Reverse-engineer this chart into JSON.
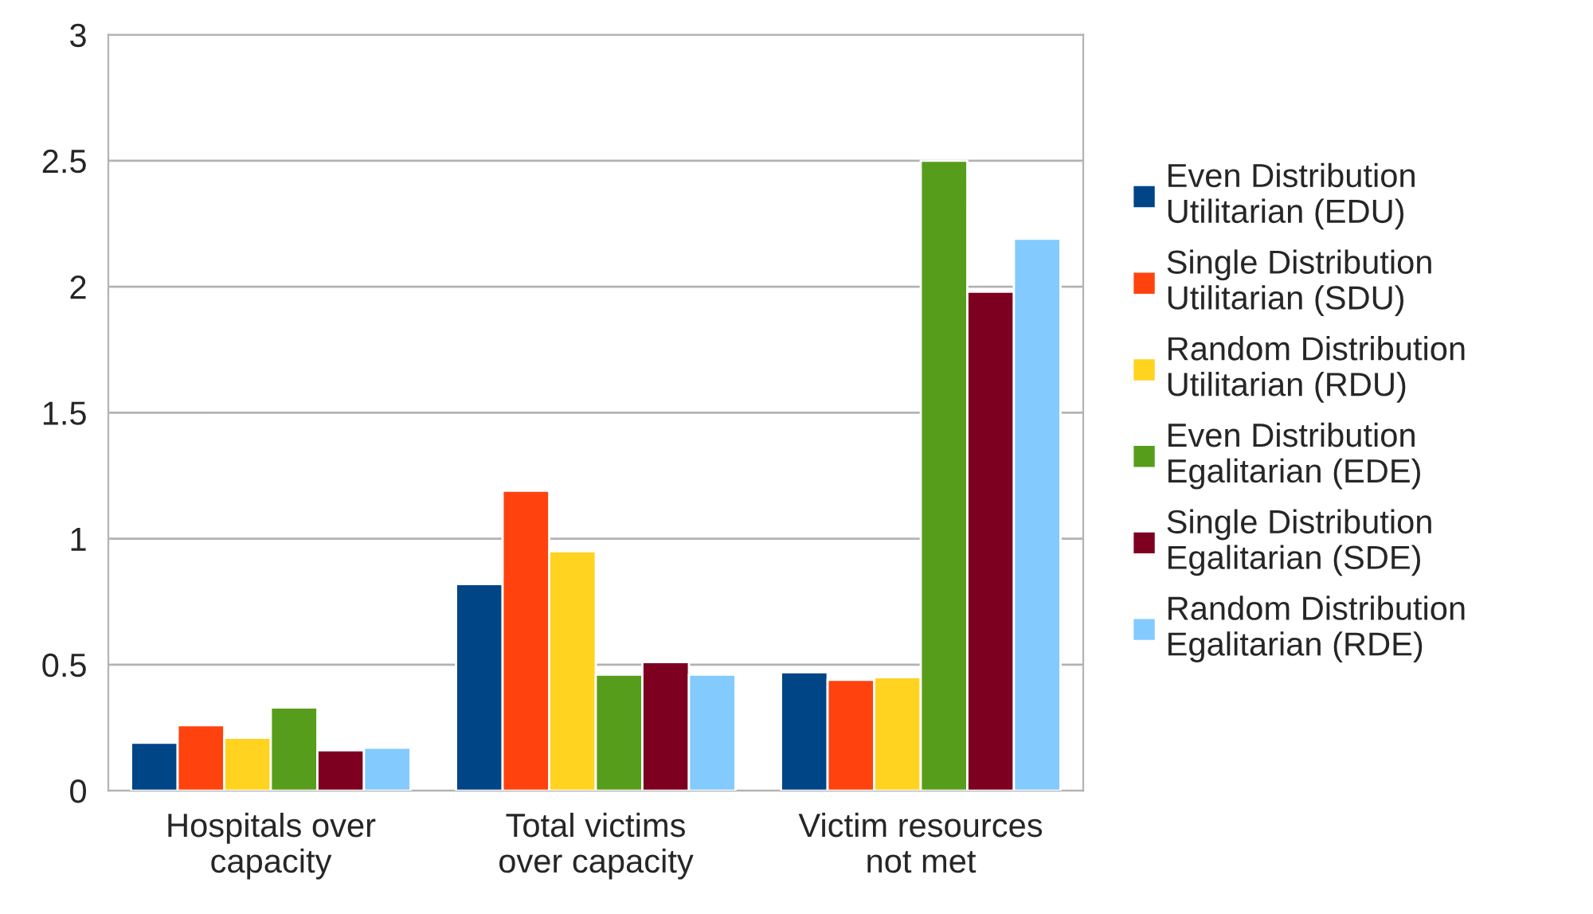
{
  "chart_data": {
    "type": "bar",
    "categories": [
      "Hospitals over\ncapacity",
      "Total victims\nover capacity",
      "Victim resources\nnot met"
    ],
    "series": [
      {
        "name": "Even Distribution\nUtilitarian (EDU)",
        "color": "#004586",
        "values": [
          0.19,
          0.82,
          0.47
        ]
      },
      {
        "name": "Single Distribution\nUtilitarian (SDU)",
        "color": "#ff420e",
        "values": [
          0.26,
          1.19,
          0.44
        ]
      },
      {
        "name": "Random Distribution\nUtilitarian (RDU)",
        "color": "#ffd320",
        "values": [
          0.21,
          0.95,
          0.45
        ]
      },
      {
        "name": "Even Distribution\nEgalitarian (EDE)",
        "color": "#579d1c",
        "values": [
          0.33,
          0.46,
          2.5
        ]
      },
      {
        "name": "Single Distribution\nEgalitarian (SDE)",
        "color": "#7e0021",
        "values": [
          0.16,
          0.51,
          1.98
        ]
      },
      {
        "name": "Random Distribution\nEgalitarian (RDE)",
        "color": "#83caff",
        "values": [
          0.17,
          0.46,
          2.19
        ]
      }
    ],
    "ylim": [
      0,
      3
    ],
    "yticks": [
      0,
      0.5,
      1,
      1.5,
      2,
      2.5,
      3
    ],
    "grid": "y",
    "legend": "right"
  }
}
